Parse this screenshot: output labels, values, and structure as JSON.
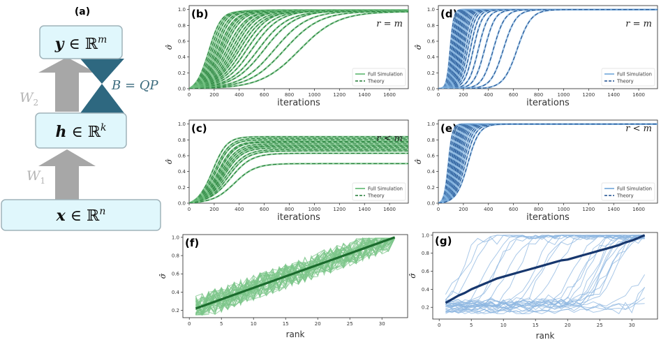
{
  "diagram": {
    "label": "(a)",
    "nodes": [
      {
        "id": "y",
        "var": "y",
        "rest": " ∈ ℝ",
        "sup": "m"
      },
      {
        "id": "h",
        "var": "h",
        "rest": " ∈ ℝ",
        "sup": "k"
      },
      {
        "id": "x",
        "var": "x",
        "rest": " ∈ ℝ",
        "sup": "n"
      }
    ],
    "w2_label": "W",
    "w2_sub": "2",
    "w1_label": "W",
    "w1_sub": "1",
    "b_label": "B = QP",
    "colors": {
      "box_fill": "#e0f7fc",
      "box_stroke": "#9fb3ba",
      "arrow": "#a7a7a7",
      "bowtie": "#2e6880",
      "weight_text": "#b4b4b4",
      "b_text": "#3b6b7d"
    }
  },
  "chart_data": [
    {
      "id": "b",
      "label": "(b)",
      "type": "line",
      "xlabel": "iterations",
      "ylabel": "σ̂",
      "xlim": [
        0,
        1750
      ],
      "ylim": [
        0,
        1.05
      ],
      "xticks": [
        0,
        200,
        400,
        600,
        800,
        1000,
        1200,
        1400,
        1600
      ],
      "yticks": [
        0.0,
        0.2,
        0.4,
        0.6,
        0.8,
        1.0
      ],
      "annotation": "r = m",
      "legend": [
        "Full Simulation",
        "Theory"
      ],
      "color_dark": "#1f7a34",
      "color_light": "#6fbf7f",
      "model": "logistic",
      "series": {
        "asymptote": [
          0.98,
          0.985,
          0.99,
          0.985,
          0.99,
          0.98,
          0.995,
          0.99,
          0.985,
          0.98,
          0.99,
          0.985,
          0.99,
          0.98,
          0.975,
          0.99,
          0.985,
          0.99,
          0.98,
          0.99,
          0.985,
          0.98,
          0.975
        ],
        "midpoint": [
          160,
          175,
          190,
          205,
          220,
          235,
          250,
          265,
          280,
          300,
          320,
          340,
          360,
          380,
          400,
          430,
          460,
          500,
          550,
          600,
          680,
          760,
          880
        ],
        "rate": [
          0.021,
          0.02,
          0.019,
          0.018,
          0.017,
          0.016,
          0.015,
          0.0145,
          0.014,
          0.013,
          0.0125,
          0.012,
          0.0115,
          0.011,
          0.0105,
          0.01,
          0.0095,
          0.009,
          0.0085,
          0.008,
          0.0075,
          0.007,
          0.0065
        ]
      }
    },
    {
      "id": "c",
      "label": "(c)",
      "type": "line",
      "xlabel": "iterations",
      "ylabel": "σ̂",
      "xlim": [
        0,
        1750
      ],
      "ylim": [
        0,
        1.05
      ],
      "xticks": [
        0,
        200,
        400,
        600,
        800,
        1000,
        1200,
        1400,
        1600
      ],
      "yticks": [
        0.0,
        0.2,
        0.4,
        0.6,
        0.8,
        1.0
      ],
      "annotation": "r < m",
      "legend": [
        "Full Simulation",
        "Theory"
      ],
      "color_dark": "#1f7a34",
      "color_light": "#6fbf7f",
      "model": "logistic",
      "series": {
        "asymptote": [
          0.84,
          0.82,
          0.8,
          0.78,
          0.77,
          0.75,
          0.73,
          0.72,
          0.7,
          0.68,
          0.66,
          0.63,
          0.5
        ],
        "midpoint": [
          190,
          205,
          215,
          230,
          240,
          250,
          260,
          270,
          280,
          295,
          310,
          330,
          360
        ],
        "rate": [
          0.018,
          0.017,
          0.017,
          0.016,
          0.016,
          0.015,
          0.015,
          0.014,
          0.014,
          0.013,
          0.013,
          0.012,
          0.012
        ]
      }
    },
    {
      "id": "d",
      "label": "(d)",
      "type": "line",
      "xlabel": "iterations",
      "ylabel": "σ̂",
      "xlim": [
        0,
        1750
      ],
      "ylim": [
        0,
        1.05
      ],
      "xticks": [
        0,
        200,
        400,
        600,
        800,
        1000,
        1200,
        1400,
        1600
      ],
      "yticks": [
        0.0,
        0.2,
        0.4,
        0.6,
        0.8,
        1.0
      ],
      "annotation": "r = m",
      "legend": [
        "Full Simulation",
        "Theory"
      ],
      "color_dark": "#1d4f8f",
      "color_light": "#7fb0de",
      "model": "logistic",
      "series": {
        "asymptote": [
          1.0,
          1.0,
          1.0,
          1.0,
          1.0,
          1.0,
          1.0,
          1.0,
          1.0,
          1.0,
          1.0,
          1.0,
          1.0,
          1.0,
          1.0,
          1.0,
          1.0,
          1.0,
          1.0,
          1.0,
          1.0,
          1.0,
          1.0
        ],
        "midpoint": [
          95,
          105,
          112,
          120,
          128,
          135,
          142,
          150,
          158,
          166,
          175,
          185,
          195,
          205,
          220,
          235,
          255,
          280,
          320,
          370,
          440,
          520,
          630
        ],
        "rate": [
          0.07,
          0.065,
          0.06,
          0.058,
          0.055,
          0.052,
          0.05,
          0.048,
          0.046,
          0.044,
          0.042,
          0.04,
          0.038,
          0.036,
          0.034,
          0.032,
          0.03,
          0.028,
          0.026,
          0.024,
          0.022,
          0.02,
          0.018
        ]
      }
    },
    {
      "id": "e",
      "label": "(e)",
      "type": "line",
      "xlabel": "iterations",
      "ylabel": "σ̂",
      "xlim": [
        0,
        1750
      ],
      "ylim": [
        0,
        1.05
      ],
      "xticks": [
        0,
        200,
        400,
        600,
        800,
        1000,
        1200,
        1400,
        1600
      ],
      "yticks": [
        0.0,
        0.2,
        0.4,
        0.6,
        0.8,
        1.0
      ],
      "annotation": "r < m",
      "legend": [
        "Full Simulation",
        "Theory"
      ],
      "color_dark": "#1d4f8f",
      "color_light": "#7fb0de",
      "model": "logistic",
      "series": {
        "asymptote": [
          1.0,
          1.0,
          1.0,
          1.0,
          1.0,
          1.0,
          1.0,
          1.0,
          1.0,
          1.0,
          1.0,
          1.0,
          1.0,
          1.0,
          1.0,
          1.0
        ],
        "midpoint": [
          80,
          90,
          100,
          108,
          115,
          122,
          130,
          138,
          146,
          155,
          165,
          175,
          188,
          200,
          215,
          235
        ],
        "rate": [
          0.06,
          0.055,
          0.05,
          0.048,
          0.045,
          0.042,
          0.04,
          0.038,
          0.036,
          0.034,
          0.032,
          0.03,
          0.028,
          0.026,
          0.024,
          0.022
        ]
      }
    },
    {
      "id": "f",
      "label": "(f)",
      "type": "line",
      "xlabel": "rank",
      "ylabel": "σ̂",
      "xlim": [
        -1,
        34
      ],
      "ylim": [
        0.12,
        1.03
      ],
      "xticks": [
        0,
        5,
        10,
        15,
        20,
        25,
        30
      ],
      "yticks": [
        0.2,
        0.4,
        0.6,
        0.8,
        1.0
      ],
      "color_dark": "#1a6b2c",
      "color_light": "#7cc58a",
      "mean": {
        "x": [
          1,
          32
        ],
        "y": [
          0.22,
          1.0
        ]
      },
      "noise_count": 42,
      "noise_spread": 0.14
    },
    {
      "id": "g",
      "label": "(g)",
      "type": "line",
      "xlabel": "rank",
      "ylabel": "σ̂",
      "xlim": [
        -1,
        34
      ],
      "ylim": [
        0.07,
        1.03
      ],
      "xticks": [
        0,
        5,
        10,
        15,
        20,
        25,
        30
      ],
      "yticks": [
        0.2,
        0.4,
        0.6,
        0.8,
        1.0
      ],
      "color_dark": "#17376e",
      "color_light": "#8cb6e0",
      "mean": {
        "x": [
          1,
          2,
          3,
          4,
          5,
          6,
          7,
          8,
          9,
          10,
          11,
          12,
          13,
          14,
          15,
          16,
          17,
          18,
          19,
          20,
          21,
          22,
          23,
          24,
          25,
          26,
          27,
          28,
          29,
          30,
          31,
          32
        ],
        "y": [
          0.25,
          0.29,
          0.33,
          0.36,
          0.4,
          0.43,
          0.46,
          0.49,
          0.52,
          0.54,
          0.56,
          0.58,
          0.6,
          0.62,
          0.64,
          0.66,
          0.68,
          0.7,
          0.72,
          0.73,
          0.75,
          0.77,
          0.79,
          0.81,
          0.83,
          0.85,
          0.87,
          0.89,
          0.92,
          0.94,
          0.97,
          1.0
        ]
      },
      "noise_count": 30
    }
  ]
}
